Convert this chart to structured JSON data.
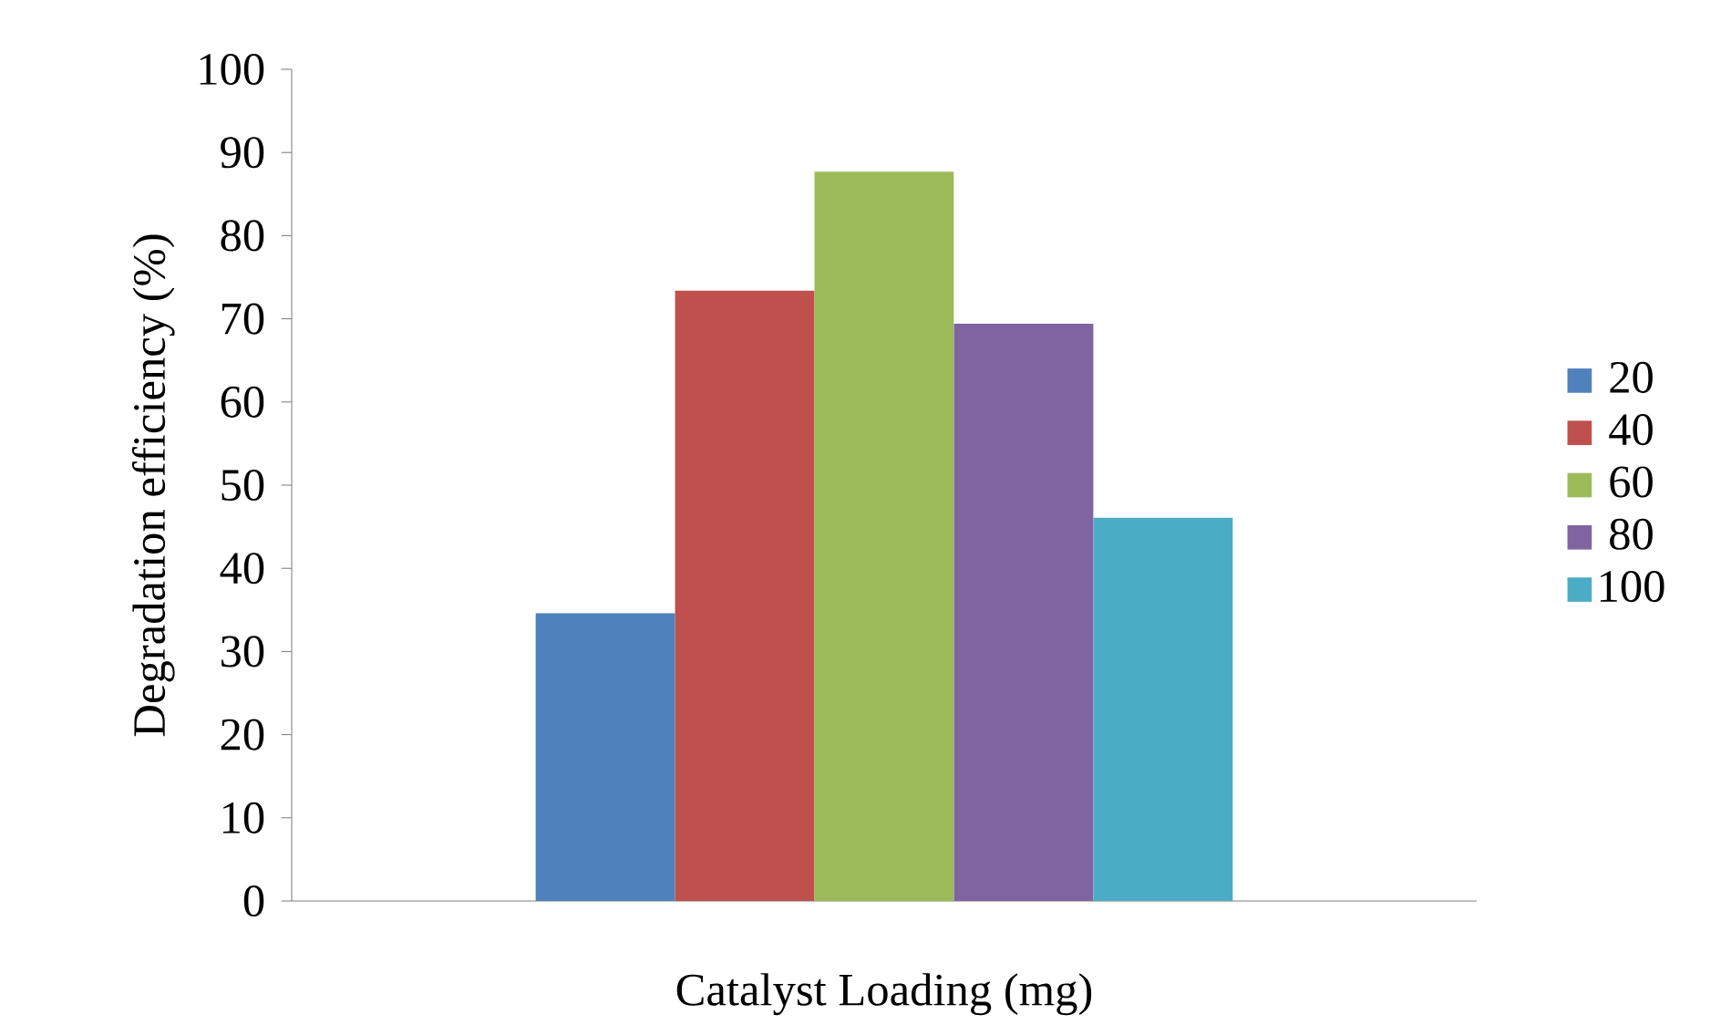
{
  "chart_data": {
    "type": "bar",
    "xlabel": "Catalyst Loading (mg)",
    "ylabel": "Degradation efficiency (%)",
    "categories": [
      null
    ],
    "series": [
      {
        "name": "20",
        "color": "#4f81bd",
        "values": [
          34.6
        ]
      },
      {
        "name": "40",
        "color": "#c0504d",
        "values": [
          73.4
        ]
      },
      {
        "name": "60",
        "color": "#9bbb59",
        "values": [
          87.7
        ]
      },
      {
        "name": "80",
        "color": "#8064a2",
        "values": [
          69.4
        ]
      },
      {
        "name": "100",
        "color": "#4bacc6",
        "values": [
          46.1
        ]
      }
    ],
    "ylim": [
      0,
      100
    ],
    "yticks": [
      0,
      10,
      20,
      30,
      40,
      50,
      60,
      70,
      80,
      90,
      100
    ],
    "legend": "right"
  }
}
